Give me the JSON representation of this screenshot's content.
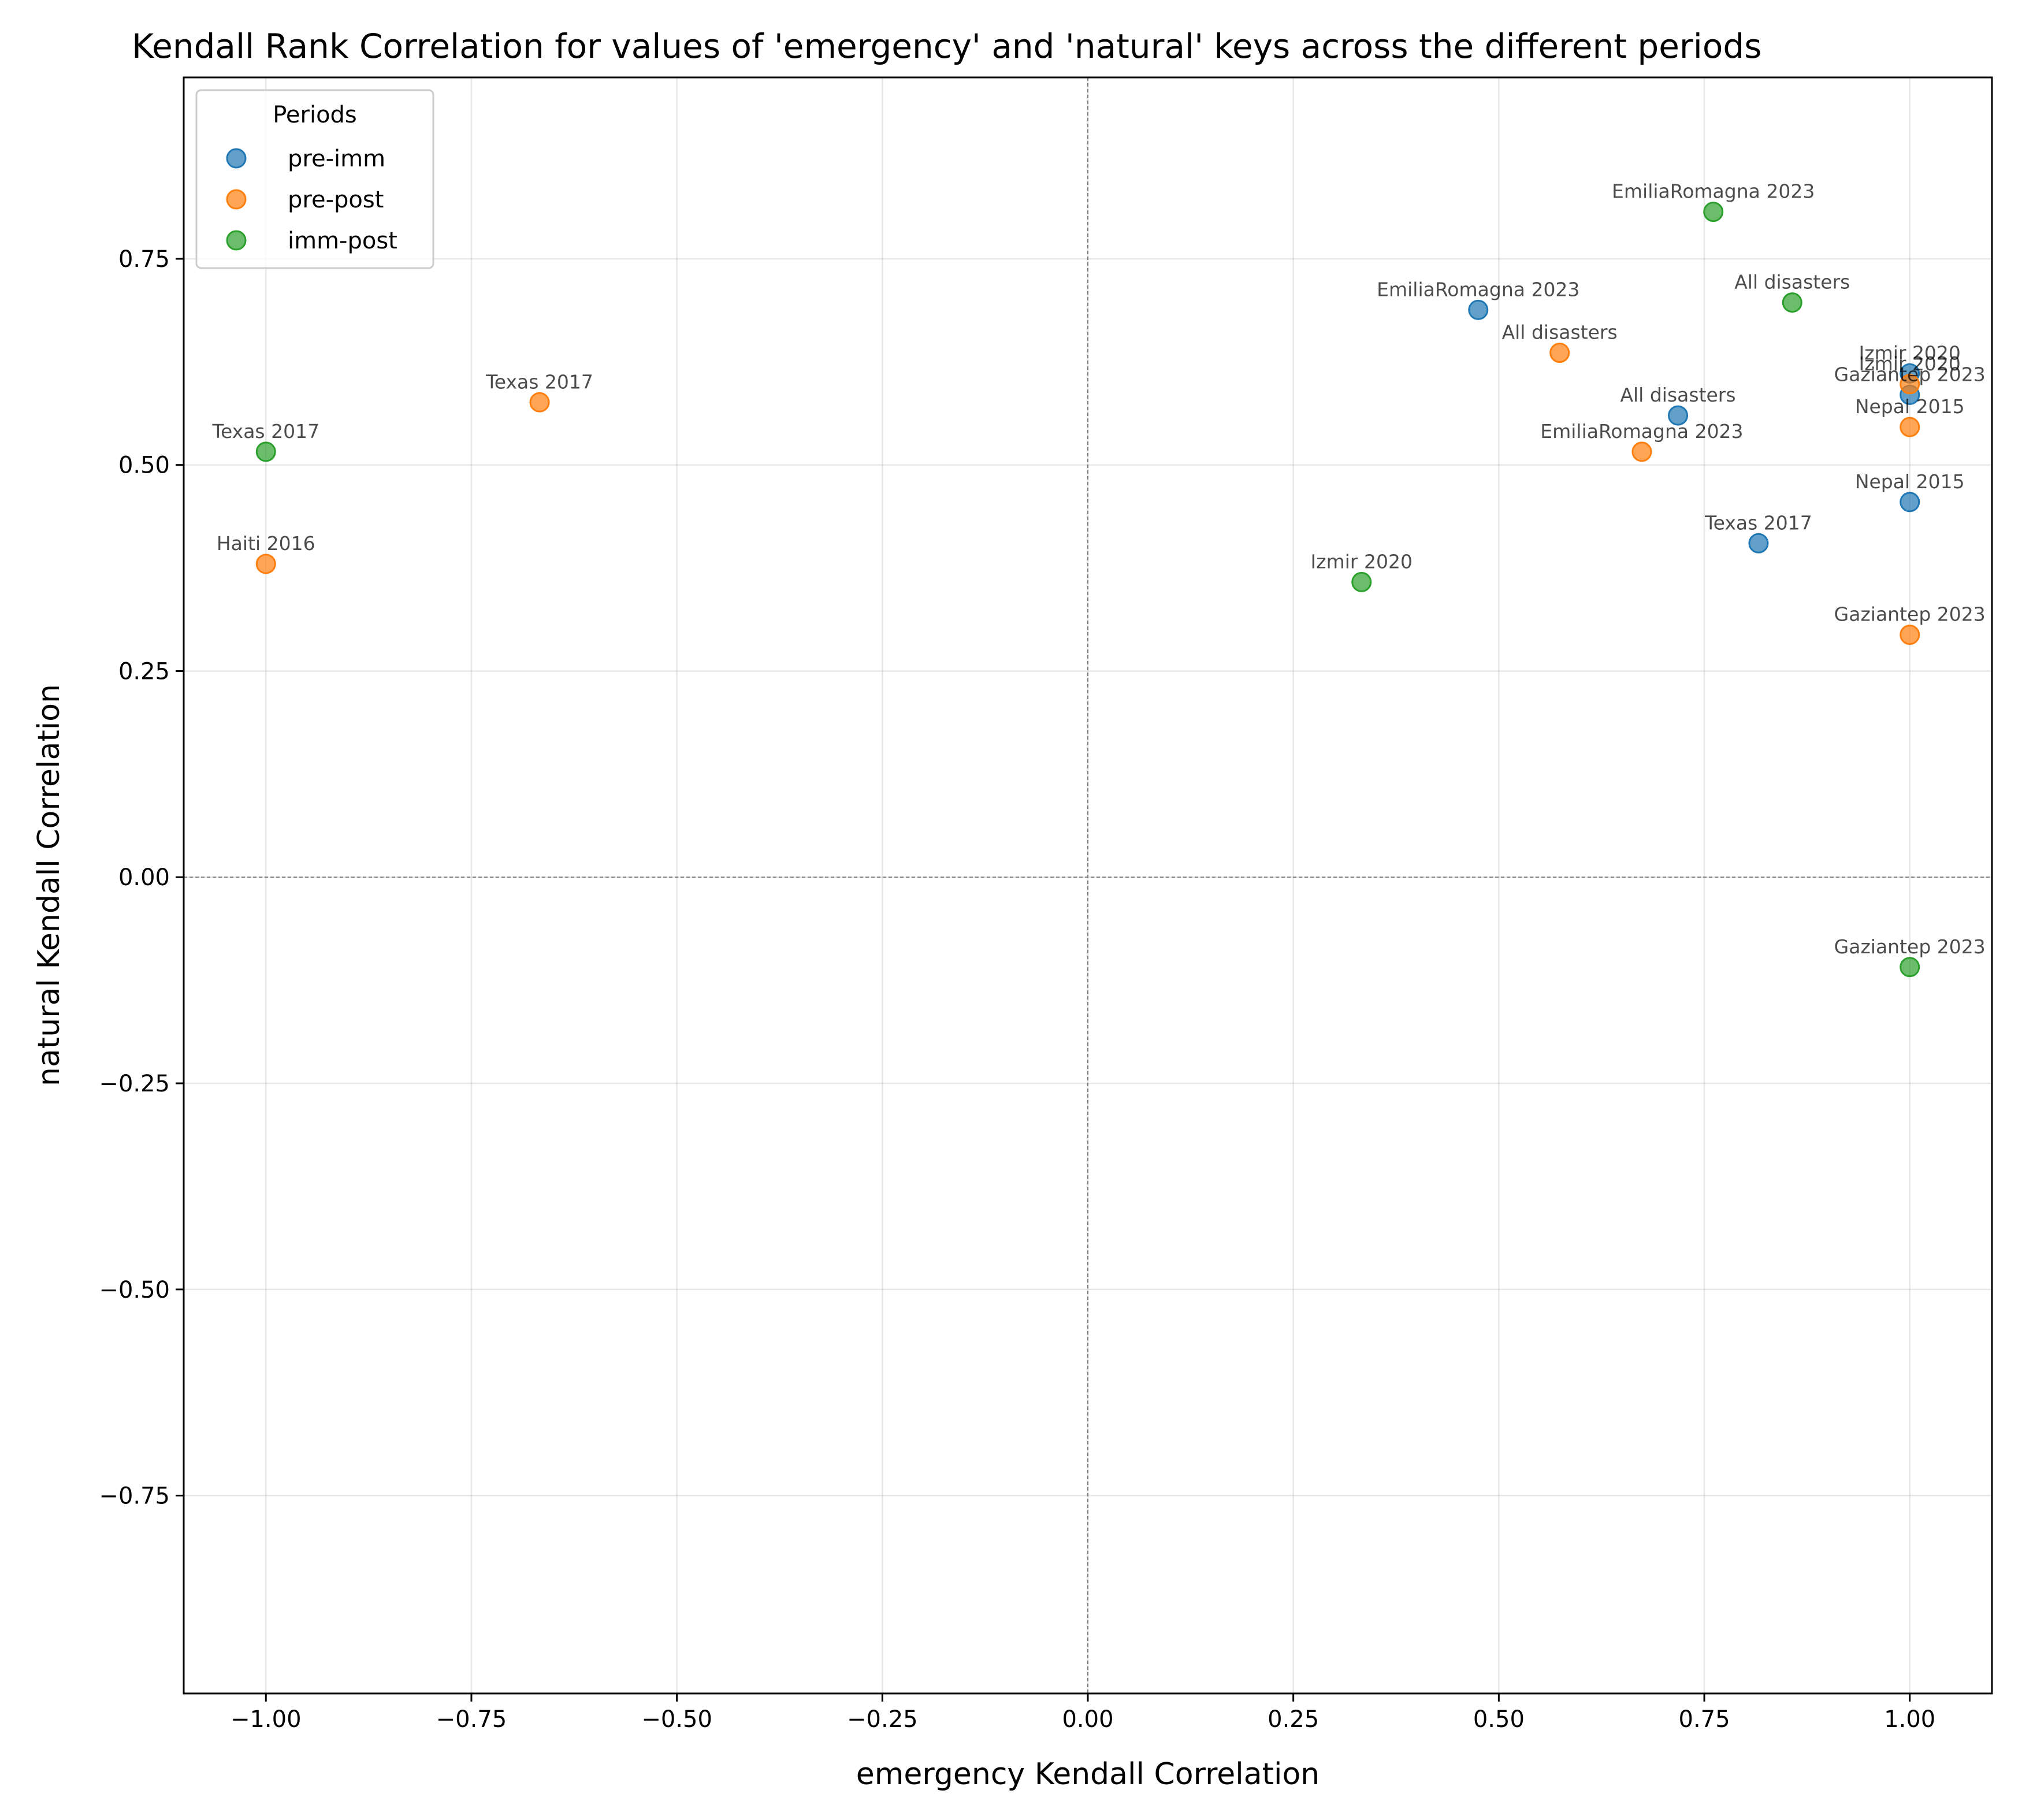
{
  "chart_data": {
    "type": "scatter",
    "title": "Kendall Rank Correlation for values of 'emergency' and 'natural' keys across the different periods",
    "xlabel": "emergency Kendall Correlation",
    "ylabel": "natural Kendall Correlation",
    "xlim": [
      -1.1,
      1.1
    ],
    "ylim": [
      -0.99,
      0.97
    ],
    "xticks": [
      -1.0,
      -0.75,
      -0.5,
      -0.25,
      0.0,
      0.25,
      0.5,
      0.75,
      1.0
    ],
    "xtick_labels": [
      "−1.00",
      "−0.75",
      "−0.50",
      "−0.25",
      "0.00",
      "0.25",
      "0.50",
      "0.75",
      "1.00"
    ],
    "yticks": [
      -0.75,
      -0.5,
      -0.25,
      0.0,
      0.25,
      0.5,
      0.75
    ],
    "ytick_labels": [
      "−0.75",
      "−0.50",
      "−0.25",
      "0.00",
      "0.25",
      "0.50",
      "0.75"
    ],
    "grid": true,
    "reference_lines": {
      "x": 0,
      "y": 0
    },
    "legend": {
      "title": "Periods",
      "placement": "top-left"
    },
    "series": [
      {
        "name": "pre-imm",
        "color": "#1f77b4",
        "points": [
          {
            "x": 0.475,
            "y": 0.688,
            "label": "EmiliaRomagna 2023"
          },
          {
            "x": 0.718,
            "y": 0.56,
            "label": "All disasters"
          },
          {
            "x": 1.0,
            "y": 0.611,
            "label": "Izmir 2020"
          },
          {
            "x": 1.0,
            "y": 0.585,
            "label": "Gaziantep 2023"
          },
          {
            "x": 1.0,
            "y": 0.455,
            "label": "Nepal 2015"
          },
          {
            "x": 0.816,
            "y": 0.405,
            "label": "Texas 2017"
          }
        ]
      },
      {
        "name": "pre-post",
        "color": "#ff7f0e",
        "points": [
          {
            "x": -0.667,
            "y": 0.576,
            "label": "Texas 2017"
          },
          {
            "x": -1.0,
            "y": 0.38,
            "label": "Haiti 2016"
          },
          {
            "x": 0.574,
            "y": 0.636,
            "label": "All disasters"
          },
          {
            "x": 0.674,
            "y": 0.516,
            "label": "EmiliaRomagna 2023"
          },
          {
            "x": 1.0,
            "y": 0.598,
            "label": "Izmir 2020"
          },
          {
            "x": 1.0,
            "y": 0.546,
            "label": "Nepal 2015"
          },
          {
            "x": 1.0,
            "y": 0.294,
            "label": "Gaziantep 2023"
          }
        ]
      },
      {
        "name": "imm-post",
        "color": "#2ca02c",
        "points": [
          {
            "x": 0.761,
            "y": 0.807,
            "label": "EmiliaRomagna 2023"
          },
          {
            "x": 0.857,
            "y": 0.697,
            "label": "All disasters"
          },
          {
            "x": -1.0,
            "y": 0.516,
            "label": "Texas 2017"
          },
          {
            "x": 0.333,
            "y": 0.358,
            "label": "Izmir 2020"
          },
          {
            "x": 1.0,
            "y": -0.109,
            "label": "Gaziantep 2023"
          }
        ]
      }
    ]
  }
}
